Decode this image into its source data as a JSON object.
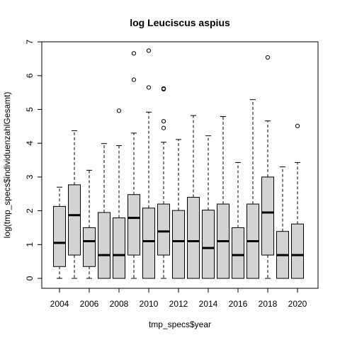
{
  "chart_data": {
    "type": "boxplot",
    "title": "log Leuciscus aspius",
    "xlabel": "tmp_specs$year",
    "ylabel": "log(tmp_specs$individuenzahlGesamt)",
    "ylim": [
      0,
      7
    ],
    "yticks": [
      0,
      1,
      2,
      3,
      4,
      5,
      6,
      7
    ],
    "xtick_labels": [
      "2004",
      "2006",
      "2008",
      "2010",
      "2012",
      "2014",
      "2016",
      "2018",
      "2020"
    ],
    "box_fill": "#d3d3d3",
    "categories": [
      "2004",
      "2005",
      "2006",
      "2007",
      "2008",
      "2009",
      "2010",
      "2011",
      "2012",
      "2013",
      "2014",
      "2015",
      "2016",
      "2017",
      "2018",
      "2019",
      "2020"
    ],
    "boxes": [
      {
        "year": "2004",
        "whisker_low": 0,
        "q1": 0.35,
        "median": 1.05,
        "q3": 2.13,
        "whisker_high": 2.7,
        "outliers": []
      },
      {
        "year": "2005",
        "whisker_low": 0,
        "q1": 0.69,
        "median": 1.87,
        "q3": 2.77,
        "whisker_high": 4.37,
        "outliers": []
      },
      {
        "year": "2006",
        "whisker_low": 0,
        "q1": 0.35,
        "median": 1.1,
        "q3": 1.5,
        "whisker_high": 3.2,
        "outliers": []
      },
      {
        "year": "2007",
        "whisker_low": 0,
        "q1": 0,
        "median": 0.69,
        "q3": 1.95,
        "whisker_high": 3.99,
        "outliers": []
      },
      {
        "year": "2008",
        "whisker_low": 0,
        "q1": 0,
        "median": 0.69,
        "q3": 1.79,
        "whisker_high": 3.93,
        "outliers": [
          4.96
        ]
      },
      {
        "year": "2009",
        "whisker_low": 0,
        "q1": 0.69,
        "median": 1.79,
        "q3": 2.48,
        "whisker_high": 4.3,
        "outliers": [
          5.88,
          6.66
        ]
      },
      {
        "year": "2010",
        "whisker_low": 0,
        "q1": 0,
        "median": 1.1,
        "q3": 2.08,
        "whisker_high": 4.92,
        "outliers": [
          5.65,
          6.74
        ]
      },
      {
        "year": "2011",
        "whisker_low": 0,
        "q1": 0.69,
        "median": 1.39,
        "q3": 2.2,
        "whisker_high": 4.03,
        "outliers": [
          4.45,
          4.65,
          5.6,
          5.62
        ]
      },
      {
        "year": "2012",
        "whisker_low": 0,
        "q1": 0,
        "median": 1.1,
        "q3": 2.01,
        "whisker_high": 4.11,
        "outliers": []
      },
      {
        "year": "2013",
        "whisker_low": 0,
        "q1": 0,
        "median": 1.1,
        "q3": 2.4,
        "whisker_high": 4.82,
        "outliers": []
      },
      {
        "year": "2014",
        "whisker_low": 0,
        "q1": 0,
        "median": 0.9,
        "q3": 2.02,
        "whisker_high": 4.22,
        "outliers": []
      },
      {
        "year": "2015",
        "whisker_low": 0,
        "q1": 0,
        "median": 1.1,
        "q3": 2.2,
        "whisker_high": 4.79,
        "outliers": []
      },
      {
        "year": "2016",
        "whisker_low": 0,
        "q1": 0,
        "median": 0.69,
        "q3": 1.5,
        "whisker_high": 3.43,
        "outliers": []
      },
      {
        "year": "2017",
        "whisker_low": 0,
        "q1": 0,
        "median": 1.1,
        "q3": 2.2,
        "whisker_high": 5.29,
        "outliers": []
      },
      {
        "year": "2018",
        "whisker_low": 0,
        "q1": 0.69,
        "median": 1.95,
        "q3": 3.0,
        "whisker_high": 4.66,
        "outliers": [
          6.54
        ]
      },
      {
        "year": "2019",
        "whisker_low": 0,
        "q1": 0,
        "median": 0.69,
        "q3": 1.39,
        "whisker_high": 3.3,
        "outliers": []
      },
      {
        "year": "2020",
        "whisker_low": 0,
        "q1": 0,
        "median": 0.69,
        "q3": 1.61,
        "whisker_high": 3.43,
        "outliers": [
          4.51
        ]
      }
    ]
  }
}
